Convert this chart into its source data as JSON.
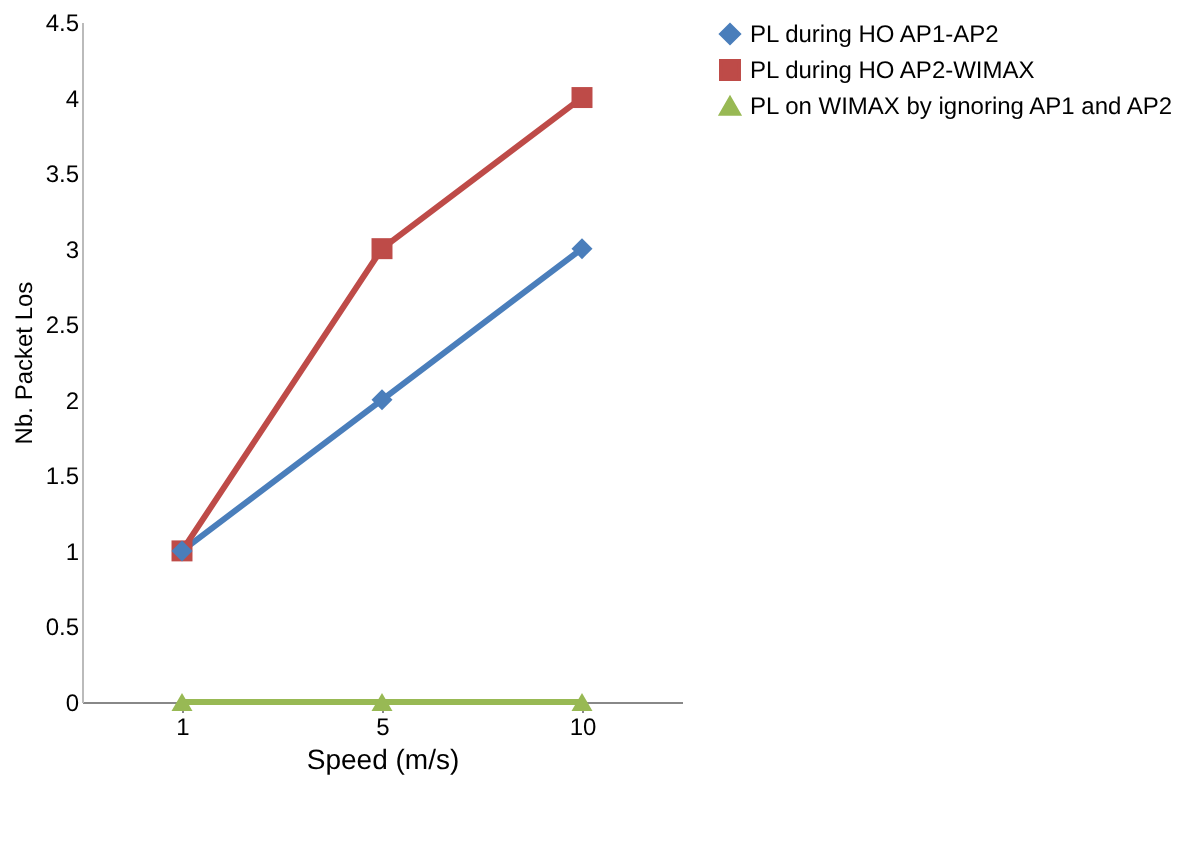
{
  "chart_data": {
    "type": "line",
    "xlabel": "Speed (m/s)",
    "ylabel": "Nb. Packet Los",
    "categories": [
      "1",
      "5",
      "10"
    ],
    "series": [
      {
        "name": "PL during HO AP1-AP2",
        "color": "#4a7ebb",
        "marker": "diamond",
        "values": [
          1,
          2,
          3
        ]
      },
      {
        "name": "PL during HO AP2-WIMAX",
        "color": "#be4b48",
        "marker": "square",
        "values": [
          1,
          3,
          4
        ]
      },
      {
        "name": "PL on WIMAX by ignoring AP1 and AP2",
        "color": "#98b954",
        "marker": "triangle",
        "values": [
          0,
          0,
          0
        ]
      }
    ],
    "ylim": [
      0,
      4.5
    ],
    "yticks": [
      0,
      0.5,
      1,
      1.5,
      2,
      2.5,
      3,
      3.5,
      4,
      4.5
    ],
    "grid": false,
    "legend": "right",
    "line_style": "solid"
  }
}
